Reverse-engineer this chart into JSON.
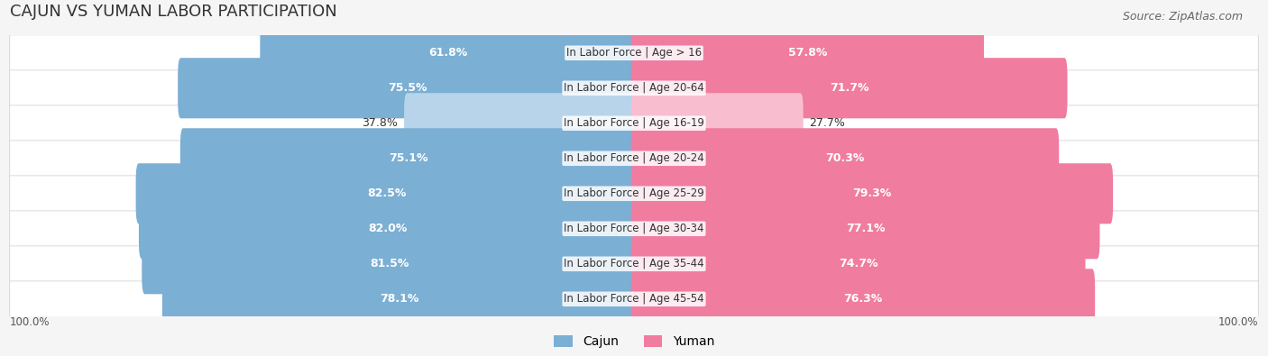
{
  "title": "CAJUN VS YUMAN LABOR PARTICIPATION",
  "source": "Source: ZipAtlas.com",
  "categories": [
    "In Labor Force | Age > 16",
    "In Labor Force | Age 20-64",
    "In Labor Force | Age 16-19",
    "In Labor Force | Age 20-24",
    "In Labor Force | Age 25-29",
    "In Labor Force | Age 30-34",
    "In Labor Force | Age 35-44",
    "In Labor Force | Age 45-54"
  ],
  "cajun_values": [
    61.8,
    75.5,
    37.8,
    75.1,
    82.5,
    82.0,
    81.5,
    78.1
  ],
  "yuman_values": [
    57.8,
    71.7,
    27.7,
    70.3,
    79.3,
    77.1,
    74.7,
    76.3
  ],
  "cajun_color": "#7bafd4",
  "cajun_color_light": "#b8d4ea",
  "yuman_color": "#f07ca0",
  "yuman_color_light": "#f9bdd0",
  "background_color": "#f5f5f5",
  "row_bg_color": "#ffffff",
  "title_fontsize": 13,
  "source_fontsize": 9,
  "bar_label_fontsize": 9,
  "category_fontsize": 8.5,
  "legend_fontsize": 10,
  "max_value": 100.0
}
